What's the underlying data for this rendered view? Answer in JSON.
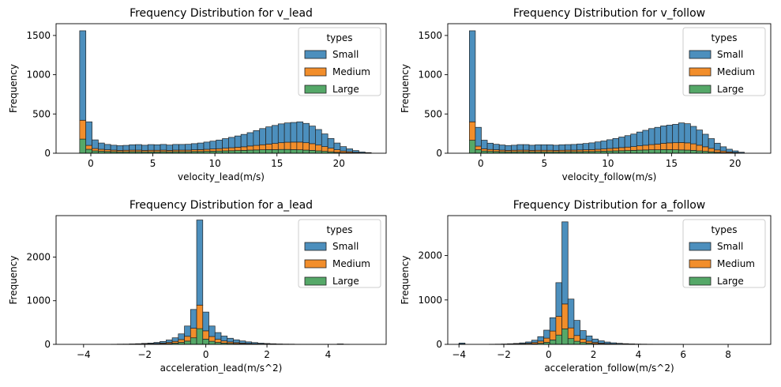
{
  "chart_data": [
    {
      "type": "bar",
      "subtype": "stacked-histogram",
      "title": "Frequency Distribution for v_lead",
      "xlabel": "velocity_lead(m/s)",
      "ylabel": "Frequency",
      "xlim": [
        -2.8,
        23.8
      ],
      "ylim": [
        0,
        1650
      ],
      "xticks": [
        0,
        5,
        10,
        15,
        20
      ],
      "yticks": [
        0,
        500,
        1000,
        1500
      ],
      "bin_start": -0.9,
      "bin_width": 0.5,
      "legend_title": "types",
      "legend_position": "top-right",
      "series": [
        {
          "name": "Large",
          "color": "#55a868",
          "values": [
            180,
            50,
            30,
            25,
            22,
            20,
            18,
            18,
            20,
            20,
            18,
            18,
            18,
            20,
            18,
            20,
            20,
            20,
            22,
            22,
            24,
            26,
            28,
            30,
            32,
            34,
            36,
            40,
            42,
            44,
            46,
            46,
            48,
            48,
            46,
            44,
            40,
            36,
            30,
            24,
            18,
            12,
            8,
            6,
            4,
            0,
            0
          ]
        },
        {
          "name": "Medium",
          "color": "#f28e2b",
          "values": [
            240,
            50,
            30,
            25,
            22,
            20,
            18,
            20,
            20,
            20,
            18,
            20,
            20,
            20,
            18,
            20,
            20,
            20,
            22,
            24,
            26,
            28,
            30,
            34,
            38,
            42,
            46,
            52,
            58,
            64,
            70,
            78,
            86,
            92,
            96,
            98,
            94,
            86,
            74,
            60,
            46,
            32,
            20,
            14,
            8,
            4,
            2
          ]
        },
        {
          "name": "Small",
          "color": "#4c8fbd",
          "values": [
            1140,
            300,
            110,
            80,
            68,
            62,
            60,
            62,
            68,
            70,
            66,
            72,
            70,
            72,
            68,
            72,
            72,
            74,
            78,
            84,
            92,
            100,
            110,
            122,
            132,
            144,
            158,
            170,
            188,
            206,
            220,
            230,
            240,
            246,
            250,
            258,
            246,
            224,
            198,
            162,
            124,
            86,
            56,
            36,
            22,
            12,
            6
          ]
        }
      ]
    },
    {
      "type": "bar",
      "subtype": "stacked-histogram",
      "title": "Frequency Distribution for v_follow",
      "xlabel": "velocity_follow(m/s)",
      "ylabel": "Frequency",
      "xlim": [
        -2.6,
        22.8
      ],
      "ylim": [
        0,
        1650
      ],
      "xticks": [
        0,
        5,
        10,
        15,
        20
      ],
      "yticks": [
        0,
        500,
        1000,
        1500
      ],
      "bin_start": -0.9,
      "bin_width": 0.47,
      "legend_title": "types",
      "legend_position": "top-right",
      "series": [
        {
          "name": "Large",
          "color": "#55a868",
          "values": [
            165,
            45,
            28,
            24,
            22,
            20,
            18,
            18,
            20,
            20,
            18,
            18,
            18,
            18,
            18,
            18,
            20,
            20,
            20,
            22,
            22,
            24,
            26,
            28,
            30,
            32,
            34,
            36,
            40,
            42,
            44,
            44,
            46,
            46,
            44,
            42,
            40,
            36,
            30,
            24,
            18,
            12,
            8,
            5,
            3,
            0
          ]
        },
        {
          "name": "Medium",
          "color": "#f28e2b",
          "values": [
            235,
            45,
            28,
            24,
            22,
            20,
            18,
            20,
            20,
            20,
            18,
            20,
            20,
            20,
            18,
            20,
            20,
            20,
            22,
            22,
            24,
            26,
            28,
            32,
            36,
            40,
            44,
            48,
            54,
            60,
            66,
            72,
            80,
            86,
            90,
            94,
            92,
            84,
            72,
            58,
            44,
            30,
            20,
            12,
            7,
            3
          ]
        },
        {
          "name": "Small",
          "color": "#4c8fbd",
          "values": [
            1160,
            240,
            110,
            80,
            70,
            65,
            62,
            64,
            70,
            70,
            66,
            70,
            70,
            70,
            66,
            70,
            70,
            72,
            76,
            80,
            86,
            94,
            102,
            112,
            122,
            134,
            146,
            160,
            176,
            190,
            204,
            214,
            222,
            226,
            234,
            250,
            244,
            222,
            194,
            160,
            124,
            86,
            54,
            34,
            20,
            10
          ]
        }
      ]
    },
    {
      "type": "bar",
      "subtype": "stacked-histogram",
      "title": "Frequency Distribution for a_lead",
      "xlabel": "acceleration_lead(m/s^2)",
      "ylabel": "Frequency",
      "xlim": [
        -4.9,
        5.9
      ],
      "ylim": [
        0,
        2950
      ],
      "xticks": [
        -4,
        -2,
        0,
        2,
        4
      ],
      "yticks": [
        0,
        1000,
        2000
      ],
      "bin_start": -4.5,
      "bin_width": 0.2,
      "legend_title": "types",
      "legend_position": "top-right",
      "series": [
        {
          "name": "Large",
          "color": "#55a868",
          "values": [
            0,
            0,
            0,
            0,
            0,
            0,
            0,
            0,
            1,
            1,
            2,
            3,
            4,
            6,
            8,
            12,
            18,
            28,
            45,
            75,
            150,
            360,
            120,
            70,
            45,
            30,
            22,
            16,
            12,
            8,
            6,
            4,
            3,
            2,
            1,
            1,
            1,
            0,
            0,
            0,
            0,
            0,
            0,
            0,
            0,
            0,
            0,
            0,
            0,
            0,
            0,
            0,
            0,
            0
          ]
        },
        {
          "name": "Medium",
          "color": "#f28e2b",
          "values": [
            0,
            0,
            0,
            0,
            0,
            0,
            0,
            0,
            1,
            1,
            2,
            4,
            6,
            8,
            12,
            18,
            26,
            40,
            65,
            110,
            220,
            540,
            190,
            110,
            70,
            48,
            34,
            24,
            18,
            13,
            9,
            6,
            4,
            3,
            2,
            1,
            1,
            0,
            0,
            0,
            0,
            0,
            0,
            0,
            0,
            0,
            0,
            0,
            0,
            0,
            0,
            0,
            0,
            0
          ]
        },
        {
          "name": "Small",
          "color": "#4c8fbd",
          "values": [
            0,
            0,
            0,
            0,
            0,
            0,
            0,
            2,
            3,
            4,
            6,
            8,
            12,
            16,
            24,
            36,
            56,
            82,
            130,
            235,
            430,
            1950,
            430,
            240,
            155,
            112,
            84,
            64,
            48,
            36,
            26,
            18,
            13,
            9,
            6,
            4,
            3,
            2,
            1,
            1,
            1,
            1,
            1,
            1,
            10,
            1,
            0,
            0,
            0,
            0,
            0,
            0,
            0,
            0
          ]
        }
      ]
    },
    {
      "type": "bar",
      "subtype": "stacked-histogram",
      "title": "Frequency Distribution for a_follow",
      "xlabel": "acceleration_follow(m/s^2)",
      "ylabel": "Frequency",
      "xlim": [
        -4.5,
        9.9
      ],
      "ylim": [
        0,
        2900
      ],
      "xticks": [
        -4,
        -2,
        0,
        2,
        4,
        6,
        8
      ],
      "yticks": [
        0,
        1000,
        2000
      ],
      "bin_start": -4.0,
      "bin_width": 0.27,
      "legend_title": "types",
      "legend_position": "top-right",
      "series": [
        {
          "name": "Large",
          "color": "#55a868",
          "values": [
            2,
            0,
            0,
            0,
            0,
            0,
            1,
            1,
            2,
            3,
            5,
            8,
            14,
            24,
            45,
            100,
            210,
            350,
            130,
            70,
            42,
            26,
            16,
            10,
            6,
            4,
            3,
            2,
            1,
            1,
            1,
            0,
            0,
            0,
            0,
            0,
            0,
            0,
            0,
            0,
            0,
            0,
            0,
            0,
            0,
            0,
            0,
            0,
            0,
            0,
            0,
            0
          ]
        },
        {
          "name": "Medium",
          "color": "#f28e2b",
          "values": [
            6,
            0,
            0,
            0,
            0,
            1,
            1,
            2,
            4,
            6,
            10,
            16,
            28,
            50,
            95,
            200,
            420,
            560,
            240,
            130,
            76,
            46,
            28,
            18,
            11,
            7,
            5,
            3,
            2,
            1,
            1,
            1,
            0,
            0,
            0,
            0,
            0,
            0,
            0,
            0,
            0,
            0,
            0,
            0,
            0,
            0,
            0,
            0,
            0,
            0,
            0,
            0
          ]
        },
        {
          "name": "Small",
          "color": "#4c8fbd",
          "values": [
            22,
            0,
            0,
            0,
            0,
            2,
            3,
            5,
            8,
            12,
            18,
            30,
            52,
            100,
            180,
            300,
            760,
            1850,
            650,
            340,
            192,
            118,
            76,
            52,
            35,
            24,
            16,
            11,
            8,
            5,
            3,
            2,
            2,
            1,
            1,
            1,
            1,
            0,
            0,
            0,
            0,
            0,
            0,
            0,
            0,
            0,
            0,
            0,
            0,
            0,
            0,
            0
          ]
        }
      ]
    }
  ]
}
